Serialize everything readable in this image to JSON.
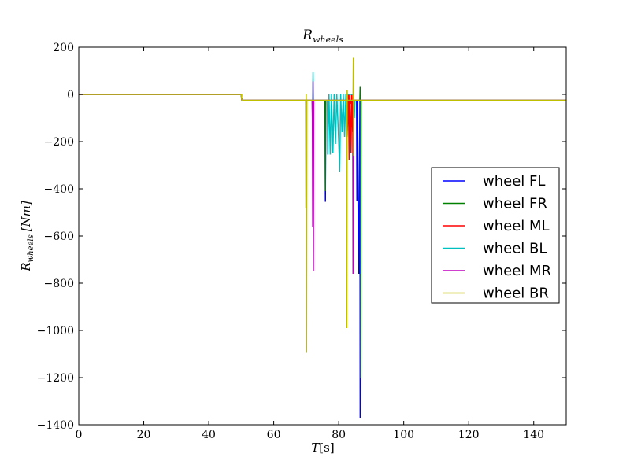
{
  "chart_data": {
    "type": "line",
    "title": "R_wheels",
    "title_main": "R",
    "title_sub": "wheels",
    "xlabel": "T[s]",
    "ylabel": "R_wheels [Nm]",
    "ylabel_main": "R",
    "ylabel_sub": "wheels",
    "ylabel_unit": "[Nm]",
    "xlabel_var": "T",
    "xlabel_unit": "[s]",
    "xlim": [
      0,
      150
    ],
    "ylim": [
      -1400,
      200
    ],
    "x_ticks": [
      0,
      20,
      40,
      60,
      80,
      100,
      120,
      140
    ],
    "x_tick_labels": [
      "0",
      "20",
      "40",
      "60",
      "80",
      "100",
      "120",
      "140"
    ],
    "y_ticks": [
      200,
      0,
      -200,
      -400,
      -600,
      -800,
      -1000,
      -1200,
      -1400
    ],
    "y_tick_labels": [
      "200",
      "0",
      "−200",
      "−400",
      "−600",
      "−800",
      "−1000",
      "−1200",
      "−1400"
    ],
    "legend_position": "center-right",
    "series": [
      {
        "name": "wheel FL",
        "color": "#0000ff",
        "points": [
          [
            0,
            0
          ],
          [
            50,
            0
          ],
          [
            50.2,
            -25
          ],
          [
            75.8,
            -25
          ],
          [
            75.9,
            -455
          ],
          [
            76,
            -25
          ],
          [
            85.5,
            -25
          ],
          [
            85.6,
            -450
          ],
          [
            85.8,
            -25
          ],
          [
            86,
            -600
          ],
          [
            86.2,
            -760
          ],
          [
            86.5,
            -25
          ],
          [
            86.6,
            -1370
          ],
          [
            86.7,
            -1200
          ],
          [
            86.8,
            -25
          ],
          [
            150,
            -25
          ]
        ]
      },
      {
        "name": "wheel FR",
        "color": "#008000",
        "points": [
          [
            0,
            0
          ],
          [
            50,
            0
          ],
          [
            50.2,
            -25
          ],
          [
            75.8,
            -25
          ],
          [
            75.9,
            -410
          ],
          [
            76,
            -25
          ],
          [
            83.5,
            -25
          ],
          [
            83.6,
            -40
          ],
          [
            84,
            -25
          ],
          [
            86.5,
            -25
          ],
          [
            86.6,
            35
          ],
          [
            86.7,
            -1200
          ],
          [
            86.8,
            -940
          ],
          [
            86.9,
            -25
          ],
          [
            150,
            -25
          ]
        ]
      },
      {
        "name": "wheel ML",
        "color": "#ff0000",
        "points": [
          [
            0,
            0
          ],
          [
            50,
            0
          ],
          [
            50.2,
            -25
          ],
          [
            82.5,
            -25
          ],
          [
            82.6,
            -180
          ],
          [
            83,
            0
          ],
          [
            83.2,
            -280
          ],
          [
            83.4,
            0
          ],
          [
            83.8,
            -250
          ],
          [
            84,
            0
          ],
          [
            84.3,
            -160
          ],
          [
            84.6,
            -25
          ],
          [
            150,
            -25
          ]
        ]
      },
      {
        "name": "wheel BL",
        "color": "#00bfbf",
        "points": [
          [
            0,
            0
          ],
          [
            50,
            0
          ],
          [
            50.2,
            -25
          ],
          [
            72,
            -25
          ],
          [
            72.1,
            95
          ],
          [
            72.2,
            -25
          ],
          [
            76.5,
            -25
          ],
          [
            76.6,
            -255
          ],
          [
            77,
            0
          ],
          [
            77.4,
            -255
          ],
          [
            77.8,
            0
          ],
          [
            78.2,
            -250
          ],
          [
            78.6,
            0
          ],
          [
            79,
            -210
          ],
          [
            79.4,
            0
          ],
          [
            80,
            -200
          ],
          [
            80.3,
            -330
          ],
          [
            80.6,
            0
          ],
          [
            81,
            -160
          ],
          [
            81.4,
            0
          ],
          [
            81.8,
            -180
          ],
          [
            82.2,
            0
          ],
          [
            84.5,
            0
          ],
          [
            84.8,
            -100
          ],
          [
            85,
            -25
          ],
          [
            150,
            -25
          ]
        ]
      },
      {
        "name": "wheel MR",
        "color": "#bf00bf",
        "points": [
          [
            0,
            0
          ],
          [
            50,
            0
          ],
          [
            50.2,
            -25
          ],
          [
            71.8,
            -25
          ],
          [
            71.9,
            -100
          ],
          [
            72,
            -560
          ],
          [
            72.1,
            55
          ],
          [
            72.2,
            -750
          ],
          [
            72.3,
            -25
          ],
          [
            84.3,
            -25
          ],
          [
            84.4,
            -760
          ],
          [
            84.5,
            -25
          ],
          [
            150,
            -25
          ]
        ]
      },
      {
        "name": "wheel BR",
        "color": "#bfbf00",
        "points": [
          [
            0,
            0
          ],
          [
            50,
            0
          ],
          [
            50.2,
            -25
          ],
          [
            69.8,
            -25
          ],
          [
            69.9,
            -480
          ],
          [
            70,
            0
          ],
          [
            70.1,
            -1095
          ],
          [
            70.2,
            -25
          ],
          [
            82.4,
            -25
          ],
          [
            82.5,
            -990
          ],
          [
            82.6,
            20
          ],
          [
            82.7,
            -25
          ],
          [
            84.4,
            -25
          ],
          [
            84.5,
            155
          ],
          [
            84.6,
            -260
          ],
          [
            84.7,
            -25
          ],
          [
            150,
            -25
          ]
        ]
      }
    ]
  }
}
